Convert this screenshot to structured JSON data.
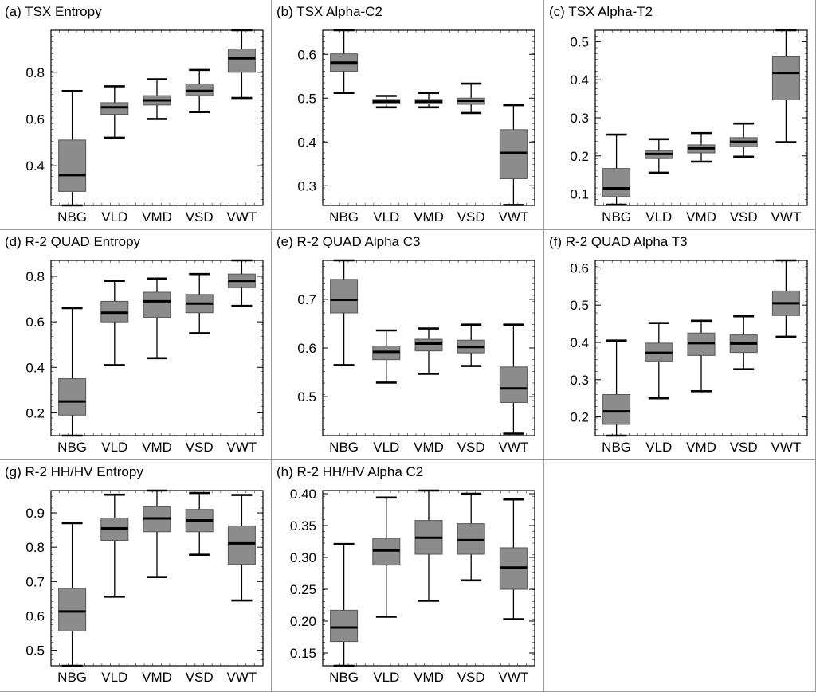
{
  "figure": {
    "box_fill": "#8c8c8c",
    "median_color": "#000000"
  },
  "chart_data": [
    {
      "type": "boxplot",
      "title": "(a) TSX Entropy",
      "categories": [
        "NBG",
        "VLD",
        "VMD",
        "VSD",
        "VWT"
      ],
      "ylim": [
        0.23,
        0.98
      ],
      "yticks": [
        0.4,
        0.6,
        0.8
      ],
      "tick_decimals": 1,
      "boxes": [
        {
          "min": 0.23,
          "q1": 0.29,
          "median": 0.36,
          "q3": 0.51,
          "max": 0.72
        },
        {
          "min": 0.52,
          "q1": 0.62,
          "median": 0.65,
          "q3": 0.67,
          "max": 0.74
        },
        {
          "min": 0.6,
          "q1": 0.66,
          "median": 0.68,
          "q3": 0.7,
          "max": 0.77
        },
        {
          "min": 0.63,
          "q1": 0.7,
          "median": 0.72,
          "q3": 0.75,
          "max": 0.81
        },
        {
          "min": 0.69,
          "q1": 0.8,
          "median": 0.86,
          "q3": 0.9,
          "max": 0.98
        }
      ]
    },
    {
      "type": "boxplot",
      "title": "(b) TSX Alpha-C2",
      "categories": [
        "NBG",
        "VLD",
        "VMD",
        "VSD",
        "VWT"
      ],
      "ylim": [
        0.255,
        0.655
      ],
      "yticks": [
        0.3,
        0.4,
        0.5,
        0.6
      ],
      "tick_decimals": 1,
      "boxes": [
        {
          "min": 0.512,
          "q1": 0.561,
          "median": 0.581,
          "q3": 0.601,
          "max": 0.655
        },
        {
          "min": 0.479,
          "q1": 0.487,
          "median": 0.492,
          "q3": 0.497,
          "max": 0.505
        },
        {
          "min": 0.479,
          "q1": 0.487,
          "median": 0.492,
          "q3": 0.497,
          "max": 0.512
        },
        {
          "min": 0.466,
          "q1": 0.486,
          "median": 0.494,
          "q3": 0.5,
          "max": 0.533
        },
        {
          "min": 0.256,
          "q1": 0.316,
          "median": 0.375,
          "q3": 0.428,
          "max": 0.484
        }
      ]
    },
    {
      "type": "boxplot",
      "title": "(c) TSX Alpha-T2",
      "categories": [
        "NBG",
        "VLD",
        "VMD",
        "VSD",
        "VWT"
      ],
      "ylim": [
        0.07,
        0.53
      ],
      "yticks": [
        0.1,
        0.2,
        0.3,
        0.4,
        0.5
      ],
      "tick_decimals": 1,
      "boxes": [
        {
          "min": 0.072,
          "q1": 0.093,
          "median": 0.115,
          "q3": 0.167,
          "max": 0.256
        },
        {
          "min": 0.156,
          "q1": 0.193,
          "median": 0.205,
          "q3": 0.215,
          "max": 0.244
        },
        {
          "min": 0.185,
          "q1": 0.208,
          "median": 0.22,
          "q3": 0.229,
          "max": 0.26
        },
        {
          "min": 0.198,
          "q1": 0.224,
          "median": 0.237,
          "q3": 0.248,
          "max": 0.285
        },
        {
          "min": 0.236,
          "q1": 0.347,
          "median": 0.418,
          "q3": 0.462,
          "max": 0.53
        }
      ]
    },
    {
      "type": "boxplot",
      "title": "(d) R-2 QUAD Entropy",
      "categories": [
        "NBG",
        "VLD",
        "VMD",
        "VSD",
        "VWT"
      ],
      "ylim": [
        0.1,
        0.87
      ],
      "yticks": [
        0.2,
        0.4,
        0.6,
        0.8
      ],
      "tick_decimals": 1,
      "boxes": [
        {
          "min": 0.1,
          "q1": 0.19,
          "median": 0.25,
          "q3": 0.35,
          "max": 0.66
        },
        {
          "min": 0.41,
          "q1": 0.6,
          "median": 0.64,
          "q3": 0.69,
          "max": 0.78
        },
        {
          "min": 0.44,
          "q1": 0.62,
          "median": 0.69,
          "q3": 0.73,
          "max": 0.79
        },
        {
          "min": 0.55,
          "q1": 0.64,
          "median": 0.68,
          "q3": 0.72,
          "max": 0.81
        },
        {
          "min": 0.67,
          "q1": 0.75,
          "median": 0.78,
          "q3": 0.81,
          "max": 0.87
        }
      ]
    },
    {
      "type": "boxplot",
      "title": "(e) R-2 QUAD Alpha C3",
      "categories": [
        "NBG",
        "VLD",
        "VMD",
        "VSD",
        "VWT"
      ],
      "ylim": [
        0.42,
        0.78
      ],
      "yticks": [
        0.5,
        0.6,
        0.7
      ],
      "tick_decimals": 1,
      "boxes": [
        {
          "min": 0.565,
          "q1": 0.672,
          "median": 0.699,
          "q3": 0.741,
          "max": 0.78
        },
        {
          "min": 0.529,
          "q1": 0.576,
          "median": 0.592,
          "q3": 0.604,
          "max": 0.636
        },
        {
          "min": 0.547,
          "q1": 0.594,
          "median": 0.609,
          "q3": 0.618,
          "max": 0.64
        },
        {
          "min": 0.563,
          "q1": 0.59,
          "median": 0.602,
          "q3": 0.616,
          "max": 0.648
        },
        {
          "min": 0.424,
          "q1": 0.488,
          "median": 0.517,
          "q3": 0.561,
          "max": 0.648
        }
      ]
    },
    {
      "type": "boxplot",
      "title": "(f) R-2 QUAD Alpha T3",
      "categories": [
        "NBG",
        "VLD",
        "VMD",
        "VSD",
        "VWT"
      ],
      "ylim": [
        0.15,
        0.62
      ],
      "yticks": [
        0.2,
        0.3,
        0.4,
        0.5,
        0.6
      ],
      "tick_decimals": 1,
      "boxes": [
        {
          "min": 0.15,
          "q1": 0.18,
          "median": 0.215,
          "q3": 0.26,
          "max": 0.405
        },
        {
          "min": 0.25,
          "q1": 0.35,
          "median": 0.372,
          "q3": 0.398,
          "max": 0.452
        },
        {
          "min": 0.269,
          "q1": 0.365,
          "median": 0.398,
          "q3": 0.425,
          "max": 0.458
        },
        {
          "min": 0.328,
          "q1": 0.373,
          "median": 0.397,
          "q3": 0.42,
          "max": 0.47
        },
        {
          "min": 0.415,
          "q1": 0.472,
          "median": 0.505,
          "q3": 0.538,
          "max": 0.62
        }
      ]
    },
    {
      "type": "boxplot",
      "title": "(g) R-2 HH/HV Entropy",
      "categories": [
        "NBG",
        "VLD",
        "VMD",
        "VSD",
        "VWT"
      ],
      "ylim": [
        0.455,
        0.965
      ],
      "yticks": [
        0.5,
        0.6,
        0.7,
        0.8,
        0.9
      ],
      "tick_decimals": 1,
      "boxes": [
        {
          "min": 0.455,
          "q1": 0.556,
          "median": 0.613,
          "q3": 0.68,
          "max": 0.87
        },
        {
          "min": 0.656,
          "q1": 0.82,
          "median": 0.855,
          "q3": 0.885,
          "max": 0.953
        },
        {
          "min": 0.713,
          "q1": 0.845,
          "median": 0.884,
          "q3": 0.918,
          "max": 0.965
        },
        {
          "min": 0.778,
          "q1": 0.845,
          "median": 0.878,
          "q3": 0.91,
          "max": 0.958
        },
        {
          "min": 0.645,
          "q1": 0.75,
          "median": 0.811,
          "q3": 0.862,
          "max": 0.952
        }
      ]
    },
    {
      "type": "boxplot",
      "title": "(h) R-2 HH/HV Alpha C2",
      "categories": [
        "NBG",
        "VLD",
        "VMD",
        "VSD",
        "VWT"
      ],
      "ylim": [
        0.13,
        0.405
      ],
      "yticks": [
        0.15,
        0.2,
        0.25,
        0.3,
        0.35,
        0.4
      ],
      "tick_decimals": 2,
      "boxes": [
        {
          "min": 0.13,
          "q1": 0.168,
          "median": 0.19,
          "q3": 0.217,
          "max": 0.321
        },
        {
          "min": 0.207,
          "q1": 0.288,
          "median": 0.311,
          "q3": 0.33,
          "max": 0.394
        },
        {
          "min": 0.232,
          "q1": 0.305,
          "median": 0.331,
          "q3": 0.358,
          "max": 0.405
        },
        {
          "min": 0.264,
          "q1": 0.305,
          "median": 0.327,
          "q3": 0.353,
          "max": 0.4
        },
        {
          "min": 0.203,
          "q1": 0.25,
          "median": 0.284,
          "q3": 0.315,
          "max": 0.391
        }
      ]
    }
  ]
}
